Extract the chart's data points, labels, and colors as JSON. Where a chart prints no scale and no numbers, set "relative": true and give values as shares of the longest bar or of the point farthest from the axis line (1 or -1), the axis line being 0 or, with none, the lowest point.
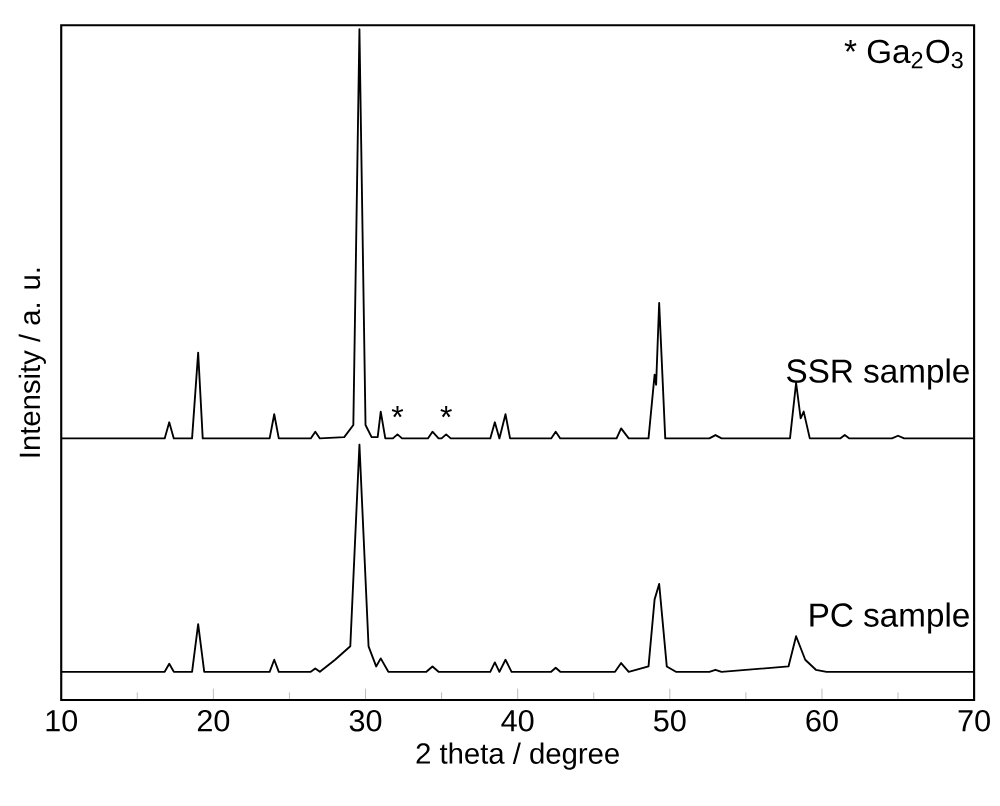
{
  "chart_data": {
    "type": "line",
    "relative": true,
    "xlabel": "2 theta / degree",
    "ylabel": "Intensity / a. u.",
    "xlim": [
      10,
      70
    ],
    "xticks": [
      10,
      20,
      30,
      40,
      50,
      60,
      70
    ],
    "tick_labels": "x",
    "grid": false,
    "legend": false,
    "annotations": [
      "* Ga$_{2}$O$_{3}$",
      {
        "text": "*",
        "x": 32.1,
        "y": 0.396
      },
      {
        "text": "*",
        "x": 35.3,
        "y": 0.396
      }
    ],
    "series": [
      {
        "name": "SSR sample",
        "color": "#000000",
        "x": [
          10,
          16.8,
          17.1,
          17.4,
          18.6,
          19.0,
          19.3,
          23.7,
          24.0,
          24.3,
          26.4,
          26.7,
          27.0,
          28.6,
          29.2,
          29.6,
          30.0,
          30.4,
          30.8,
          31.0,
          31.3,
          31.8,
          32.1,
          32.4,
          34.1,
          34.4,
          34.8,
          35.0,
          35.3,
          35.6,
          38.2,
          38.5,
          38.8,
          39.2,
          39.5,
          42.2,
          42.5,
          42.8,
          46.5,
          46.8,
          47.3,
          48.6,
          49.0,
          49.1,
          49.3,
          49.7,
          52.6,
          53.0,
          53.4,
          57.9,
          58.3,
          58.6,
          58.8,
          59.2,
          61.2,
          61.5,
          61.8,
          64.6,
          65.0,
          65.4,
          70
        ],
        "values": [
          0.39,
          0.39,
          0.414,
          0.39,
          0.39,
          0.518,
          0.39,
          0.39,
          0.426,
          0.39,
          0.39,
          0.4,
          0.39,
          0.392,
          0.41,
          1.0,
          0.41,
          0.392,
          0.392,
          0.43,
          0.39,
          0.39,
          0.396,
          0.39,
          0.39,
          0.4,
          0.39,
          0.39,
          0.396,
          0.39,
          0.39,
          0.414,
          0.39,
          0.426,
          0.39,
          0.39,
          0.4,
          0.39,
          0.39,
          0.405,
          0.39,
          0.39,
          0.485,
          0.47,
          0.592,
          0.39,
          0.39,
          0.395,
          0.39,
          0.39,
          0.473,
          0.42,
          0.43,
          0.39,
          0.39,
          0.395,
          0.39,
          0.39,
          0.394,
          0.39,
          0.39
        ]
      },
      {
        "name": "PC sample",
        "color": "#000000",
        "x": [
          10,
          16.8,
          17.1,
          17.4,
          18.6,
          19.0,
          19.4,
          23.7,
          24.0,
          24.3,
          26.4,
          26.7,
          27.0,
          28.0,
          29.0,
          29.6,
          30.2,
          30.7,
          31.0,
          31.5,
          34.0,
          34.4,
          34.8,
          38.2,
          38.5,
          38.8,
          39.2,
          39.6,
          42.2,
          42.5,
          42.8,
          46.4,
          46.8,
          47.3,
          48.6,
          49.0,
          49.3,
          49.8,
          50.4,
          52.6,
          53.0,
          53.4,
          57.8,
          58.3,
          58.9,
          59.6,
          60.3,
          70
        ],
        "values": [
          0.042,
          0.042,
          0.054,
          0.042,
          0.042,
          0.113,
          0.042,
          0.042,
          0.06,
          0.042,
          0.042,
          0.047,
          0.042,
          0.06,
          0.08,
          0.381,
          0.08,
          0.05,
          0.062,
          0.042,
          0.042,
          0.05,
          0.042,
          0.042,
          0.056,
          0.042,
          0.06,
          0.042,
          0.042,
          0.048,
          0.042,
          0.042,
          0.055,
          0.042,
          0.05,
          0.15,
          0.173,
          0.05,
          0.042,
          0.042,
          0.045,
          0.042,
          0.05,
          0.095,
          0.06,
          0.045,
          0.042,
          0.042
        ]
      }
    ]
  }
}
